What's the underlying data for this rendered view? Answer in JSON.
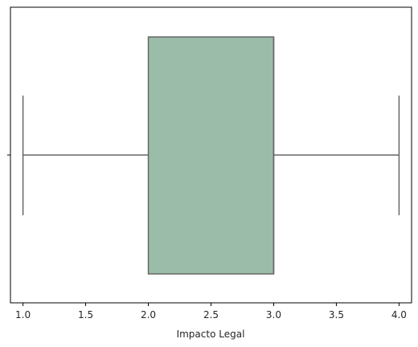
{
  "chart_data": {
    "type": "box",
    "orientation": "horizontal",
    "xlabel": "Impacto Legal",
    "ylabel": "",
    "xlim": [
      0.9,
      4.1
    ],
    "x_ticks": [
      1.0,
      1.5,
      2.0,
      2.5,
      3.0,
      3.5,
      4.0
    ],
    "x_tick_labels": [
      "1.0",
      "1.5",
      "2.0",
      "2.5",
      "3.0",
      "3.5",
      "4.0"
    ],
    "y_tick_labels": [
      ""
    ],
    "grid": false,
    "box": {
      "whisker_low": 1.0,
      "q1": 2.0,
      "median": 3.0,
      "q3": 3.0,
      "whisker_high": 4.0
    },
    "colors": {
      "box_fill": "#9bbca8",
      "line": "#666666",
      "axis": "#000000"
    }
  }
}
